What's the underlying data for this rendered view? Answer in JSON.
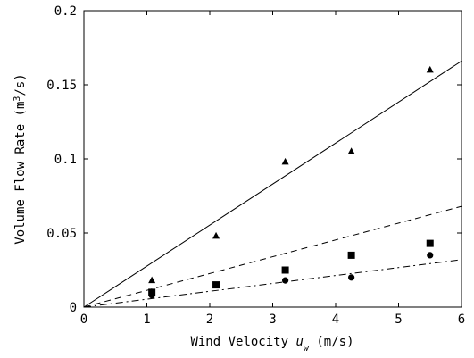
{
  "chart_data": {
    "type": "scatter",
    "xlabel": "Wind Velocity",
    "xlabel_var": "u",
    "xlabel_sub": "w",
    "xlabel_unit": "(m/s)",
    "ylabel": "Volume Flow Rate",
    "ylabel_unit_pre": "(m",
    "ylabel_unit_sup": "3",
    "ylabel_unit_post": "/s)",
    "xlim": [
      0,
      6
    ],
    "ylim": [
      0,
      0.2
    ],
    "x_ticks": [
      0,
      1,
      2,
      3,
      4,
      5,
      6
    ],
    "y_ticks": [
      0,
      0.05,
      0.1,
      0.15,
      0.2
    ],
    "x_tick_labels": [
      "0",
      "1",
      "2",
      "3",
      "4",
      "5",
      "6"
    ],
    "y_tick_labels": [
      "0",
      "0.05",
      "0.1",
      "0.15",
      "0.2"
    ],
    "grid": false,
    "series": [
      {
        "marker": "triangle",
        "x": [
          1.08,
          2.1,
          3.2,
          4.25,
          5.5
        ],
        "y": [
          0.018,
          0.048,
          0.098,
          0.105,
          0.16
        ]
      },
      {
        "marker": "square",
        "x": [
          1.08,
          2.1,
          3.2,
          4.25,
          5.5
        ],
        "y": [
          0.01,
          0.015,
          0.025,
          0.035,
          0.043
        ]
      },
      {
        "marker": "circle",
        "x": [
          1.08,
          3.2,
          4.25,
          5.5
        ],
        "y": [
          0.008,
          0.018,
          0.02,
          0.035
        ]
      }
    ],
    "fit_lines": [
      {
        "style": "solid",
        "x": [
          0,
          6
        ],
        "y": [
          0,
          0.166
        ]
      },
      {
        "style": "dashed",
        "x": [
          0,
          6
        ],
        "y": [
          0,
          0.068
        ]
      },
      {
        "style": "dashdot",
        "x": [
          0,
          6
        ],
        "y": [
          0,
          0.032
        ]
      }
    ]
  }
}
